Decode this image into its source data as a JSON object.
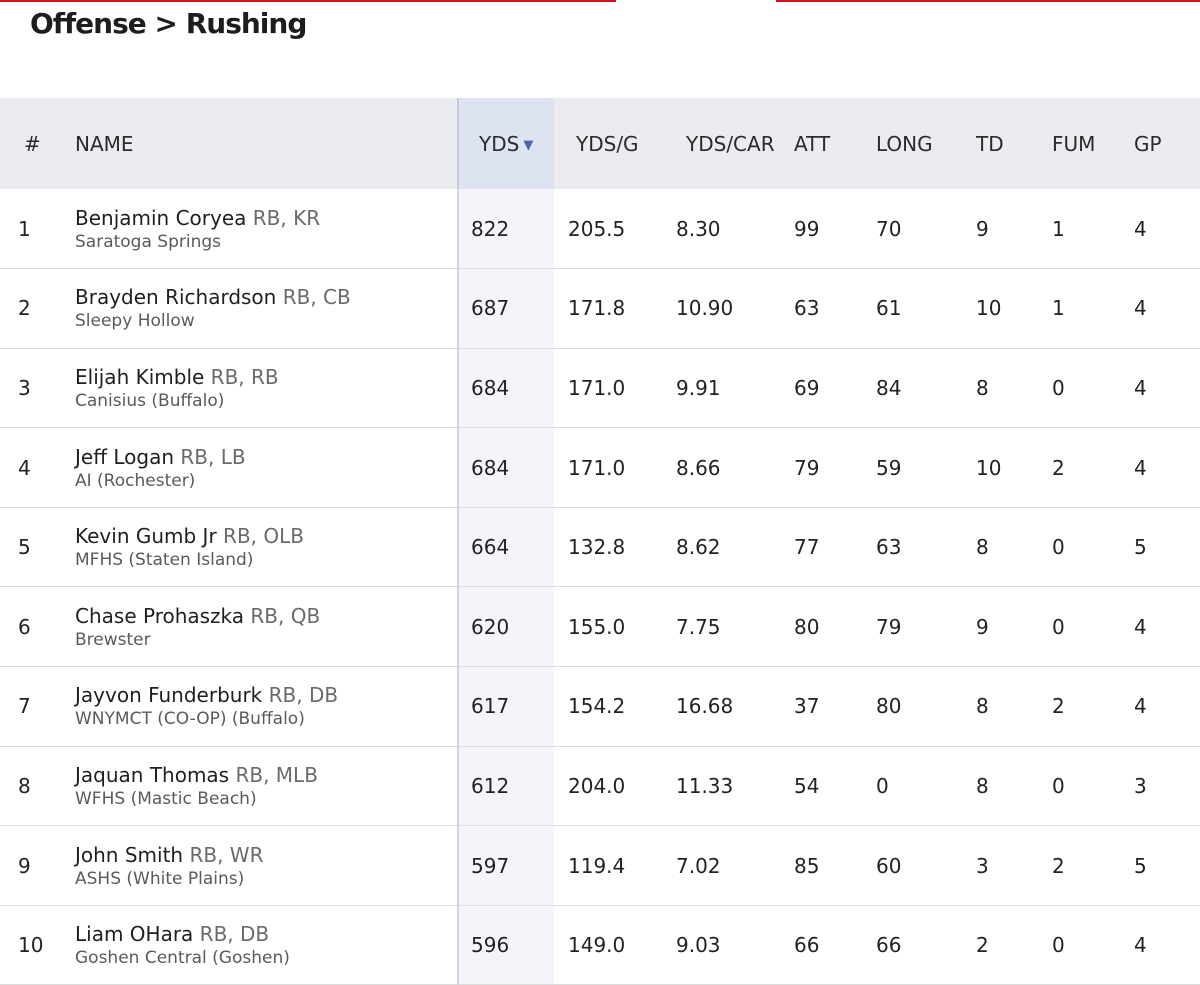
{
  "page": {
    "title": "Offense > Rushing"
  },
  "brand": {
    "accent": "#d5111b",
    "sorted_header_text": "#4a66a8"
  },
  "table": {
    "columns": [
      {
        "key": "rank",
        "label": "#"
      },
      {
        "key": "name",
        "label": "NAME"
      },
      {
        "key": "yds",
        "label": "YDS",
        "sorted": true,
        "sort_icon": "triangle-down-icon"
      },
      {
        "key": "yds_g",
        "label": "YDS/G"
      },
      {
        "key": "yds_car",
        "label": "YDS/CAR"
      },
      {
        "key": "att",
        "label": "ATT"
      },
      {
        "key": "long",
        "label": "LONG"
      },
      {
        "key": "td",
        "label": "TD"
      },
      {
        "key": "fum",
        "label": "FUM"
      },
      {
        "key": "gp",
        "label": "GP"
      }
    ],
    "rows": [
      {
        "rank": "1",
        "name": "Benjamin Coryea",
        "pos": "RB, KR",
        "school": "Saratoga Springs",
        "yds": "822",
        "yds_g": "205.5",
        "yds_car": "8.30",
        "att": "99",
        "long": "70",
        "td": "9",
        "fum": "1",
        "gp": "4"
      },
      {
        "rank": "2",
        "name": "Brayden Richardson",
        "pos": "RB, CB",
        "school": "Sleepy Hollow",
        "yds": "687",
        "yds_g": "171.8",
        "yds_car": "10.90",
        "att": "63",
        "long": "61",
        "td": "10",
        "fum": "1",
        "gp": "4"
      },
      {
        "rank": "3",
        "name": "Elijah Kimble",
        "pos": "RB, RB",
        "school": "Canisius (Buffalo)",
        "yds": "684",
        "yds_g": "171.0",
        "yds_car": "9.91",
        "att": "69",
        "long": "84",
        "td": "8",
        "fum": "0",
        "gp": "4"
      },
      {
        "rank": "4",
        "name": "Jeff Logan",
        "pos": "RB, LB",
        "school": "AI (Rochester)",
        "yds": "684",
        "yds_g": "171.0",
        "yds_car": "8.66",
        "att": "79",
        "long": "59",
        "td": "10",
        "fum": "2",
        "gp": "4"
      },
      {
        "rank": "5",
        "name": "Kevin Gumb Jr",
        "pos": "RB, OLB",
        "school": "MFHS (Staten Island)",
        "yds": "664",
        "yds_g": "132.8",
        "yds_car": "8.62",
        "att": "77",
        "long": "63",
        "td": "8",
        "fum": "0",
        "gp": "5"
      },
      {
        "rank": "6",
        "name": "Chase Prohaszka",
        "pos": "RB, QB",
        "school": "Brewster",
        "yds": "620",
        "yds_g": "155.0",
        "yds_car": "7.75",
        "att": "80",
        "long": "79",
        "td": "9",
        "fum": "0",
        "gp": "4"
      },
      {
        "rank": "7",
        "name": "Jayvon Funderburk",
        "pos": "RB, DB",
        "school": "WNYMCT (CO-OP) (Buffalo)",
        "yds": "617",
        "yds_g": "154.2",
        "yds_car": "16.68",
        "att": "37",
        "long": "80",
        "td": "8",
        "fum": "2",
        "gp": "4"
      },
      {
        "rank": "8",
        "name": "Jaquan Thomas",
        "pos": "RB, MLB",
        "school": "WFHS (Mastic Beach)",
        "yds": "612",
        "yds_g": "204.0",
        "yds_car": "11.33",
        "att": "54",
        "long": "0",
        "td": "8",
        "fum": "0",
        "gp": "3"
      },
      {
        "rank": "9",
        "name": "John Smith",
        "pos": "RB, WR",
        "school": "ASHS (White Plains)",
        "yds": "597",
        "yds_g": "119.4",
        "yds_car": "7.02",
        "att": "85",
        "long": "60",
        "td": "3",
        "fum": "2",
        "gp": "5"
      },
      {
        "rank": "10",
        "name": "Liam OHara",
        "pos": "RB, DB",
        "school": "Goshen Central (Goshen)",
        "yds": "596",
        "yds_g": "149.0",
        "yds_car": "9.03",
        "att": "66",
        "long": "66",
        "td": "2",
        "fum": "0",
        "gp": "4"
      }
    ]
  }
}
